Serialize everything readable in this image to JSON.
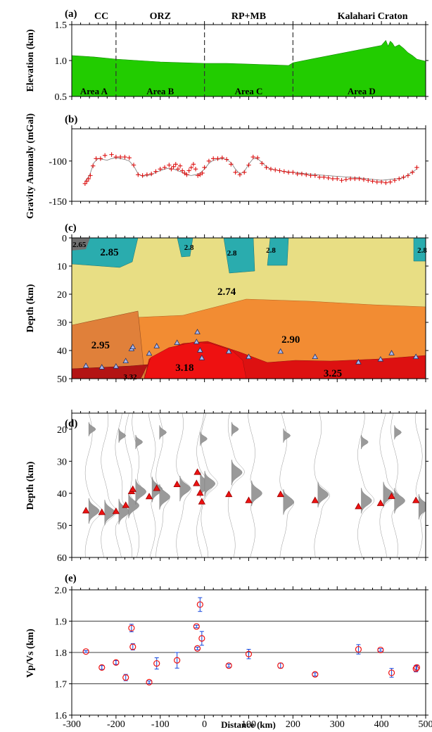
{
  "panel_labels": [
    "(a)",
    "(b)",
    "(c)",
    "(d)",
    "(e)"
  ],
  "chart_data": [
    {
      "id": "a",
      "type": "area",
      "ylabel": "Elevation (km)",
      "xlim": [
        -300,
        500
      ],
      "ylim": [
        0.5,
        1.5
      ],
      "yticks": [
        0.5,
        1.0,
        1.5
      ],
      "fill_color": "#22cc00",
      "top_labels": [
        {
          "text": "CC",
          "x": -233
        },
        {
          "text": "ORZ",
          "x": -100
        },
        {
          "text": "RP+MB",
          "x": 100
        },
        {
          "text": "Kalahari Craton",
          "x": 380
        }
      ],
      "area_labels": [
        {
          "text": "Area A",
          "x": -250
        },
        {
          "text": "Area B",
          "x": -100
        },
        {
          "text": "Area C",
          "x": 100
        },
        {
          "text": "Area D",
          "x": 355
        }
      ],
      "boundaries": [
        -200,
        0,
        200
      ],
      "x": [
        -300,
        -250,
        -200,
        -150,
        -100,
        -50,
        0,
        50,
        100,
        150,
        190,
        200,
        250,
        300,
        350,
        400,
        410,
        415,
        420,
        425,
        430,
        440,
        450,
        460,
        470,
        480,
        500
      ],
      "y": [
        1.07,
        1.05,
        1.02,
        1.0,
        0.98,
        0.97,
        0.96,
        0.96,
        0.95,
        0.94,
        0.93,
        0.97,
        1.03,
        1.09,
        1.15,
        1.21,
        1.28,
        1.2,
        1.27,
        1.24,
        1.19,
        1.22,
        1.17,
        1.11,
        1.07,
        1.02,
        0.99
      ]
    },
    {
      "id": "b",
      "type": "scatter",
      "ylabel": "Gravity Anomaly (mGal)",
      "xlim": [
        -300,
        500
      ],
      "ylim": [
        -150,
        -60
      ],
      "yticks": [
        -150,
        -100
      ],
      "observed": {
        "marker": "+",
        "color": "#dd1111",
        "x": [
          -270,
          -266,
          -262,
          -258,
          -252,
          -245,
          -235,
          -225,
          -210,
          -200,
          -190,
          -180,
          -170,
          -160,
          -150,
          -140,
          -130,
          -120,
          -110,
          -100,
          -90,
          -80,
          -75,
          -70,
          -65,
          -60,
          -55,
          -50,
          -45,
          -40,
          -35,
          -30,
          -25,
          -20,
          -15,
          -10,
          -5,
          0,
          10,
          20,
          30,
          40,
          50,
          60,
          70,
          80,
          90,
          100,
          110,
          120,
          130,
          140,
          150,
          160,
          170,
          180,
          190,
          200,
          210,
          220,
          230,
          240,
          250,
          260,
          270,
          280,
          290,
          300,
          310,
          320,
          330,
          340,
          350,
          360,
          370,
          380,
          390,
          400,
          410,
          420,
          430,
          440,
          450,
          460,
          470,
          480
        ],
        "y": [
          -128,
          -125,
          -122,
          -118,
          -106,
          -97,
          -97,
          -93,
          -92,
          -95,
          -95,
          -95,
          -96,
          -105,
          -117,
          -118,
          -117,
          -116,
          -113,
          -110,
          -108,
          -105,
          -110,
          -107,
          -104,
          -110,
          -106,
          -112,
          -115,
          -117,
          -112,
          -108,
          -104,
          -110,
          -118,
          -117,
          -115,
          -108,
          -100,
          -97,
          -97,
          -96,
          -98,
          -104,
          -114,
          -117,
          -114,
          -105,
          -95,
          -96,
          -103,
          -108,
          -110,
          -111,
          -112,
          -113,
          -114,
          -114,
          -116,
          -116,
          -117,
          -118,
          -118,
          -120,
          -120,
          -121,
          -122,
          -122,
          -124,
          -123,
          -122,
          -122,
          -122,
          -123,
          -124,
          -125,
          -126,
          -126,
          -127,
          -126,
          -124,
          -122,
          -120,
          -118,
          -114,
          -108
        ]
      },
      "model": {
        "color": "#777777",
        "x": [
          -270,
          -260,
          -250,
          -240,
          -230,
          -220,
          -210,
          -200,
          -190,
          -180,
          -170,
          -160,
          -150,
          -140,
          -130,
          -120,
          -110,
          -100,
          -90,
          -80,
          -70,
          -60,
          -50,
          -40,
          -30,
          -20,
          -10,
          0,
          10,
          20,
          30,
          40,
          50,
          60,
          70,
          80,
          90,
          100,
          110,
          120,
          130,
          140,
          150,
          160,
          170,
          180,
          200,
          250,
          300,
          350,
          400,
          450,
          480
        ],
        "y": [
          -125,
          -118,
          -102,
          -97,
          -98,
          -99,
          -97,
          -96,
          -97,
          -98,
          -100,
          -106,
          -116,
          -119,
          -118,
          -117,
          -114,
          -112,
          -110,
          -109,
          -110,
          -112,
          -114,
          -117,
          -118,
          -117,
          -115,
          -110,
          -103,
          -99,
          -98,
          -97,
          -98,
          -102,
          -110,
          -116,
          -113,
          -104,
          -97,
          -97,
          -102,
          -107,
          -110,
          -111,
          -112,
          -113,
          -114,
          -117,
          -119,
          -121,
          -124,
          -121,
          -110
        ]
      }
    },
    {
      "id": "c",
      "type": "density_model",
      "ylabel": "Depth (km)",
      "xlim": [
        -300,
        500
      ],
      "ylim": [
        50,
        0
      ],
      "yticks": [
        0,
        10,
        20,
        30,
        40,
        50
      ],
      "density_labels": [
        {
          "text": "2.65",
          "x": -283,
          "y": 2
        },
        {
          "text": "2.85",
          "x": -215,
          "y": 5
        },
        {
          "text": "2.8",
          "x": -35,
          "y": 3
        },
        {
          "text": "2.8",
          "x": 62,
          "y": 5
        },
        {
          "text": "2.8",
          "x": 150,
          "y": 4
        },
        {
          "text": "2.8",
          "x": 492,
          "y": 4
        },
        {
          "text": "2.74",
          "x": 50,
          "y": 19
        },
        {
          "text": "2.95",
          "x": -235,
          "y": 38
        },
        {
          "text": "2.90",
          "x": 195,
          "y": 36
        },
        {
          "text": "3.18",
          "x": -45,
          "y": 46
        },
        {
          "text": "3.32",
          "x": -168,
          "y": 49
        },
        {
          "text": "3.25",
          "x": 290,
          "y": 48
        }
      ],
      "layer_colors": {
        "2.65": "#707070",
        "2.8": "#2aacae",
        "2.74": "#e8de84",
        "2.90": "#f28c33",
        "2.95": "#e0803a",
        "3.18": "#ee1111",
        "3.32": "#b31414",
        "3.25": "#dd1111"
      },
      "moho_points": {
        "marker": "triangle",
        "color": "#aab8ee",
        "x": [
          -268,
          -232,
          -200,
          -178,
          -165,
          -162,
          -125,
          -108,
          -62,
          -18,
          -16,
          -10,
          -6,
          55,
          100,
          172,
          250,
          348,
          398,
          423,
          478
        ],
        "y": [
          45.5,
          46.0,
          45.7,
          43.8,
          39.5,
          38.8,
          41.1,
          38.5,
          37.3,
          37.0,
          33.5,
          40.0,
          42.7,
          40.4,
          42.3,
          40.4,
          42.3,
          44.2,
          43.2,
          41.0,
          42.3
        ]
      }
    },
    {
      "id": "d",
      "type": "receiver_function_image",
      "ylabel": "Depth (km)",
      "xlim": [
        -300,
        500
      ],
      "ylim": [
        60,
        15
      ],
      "yticks": [
        20,
        30,
        40,
        50,
        60
      ],
      "picks": {
        "marker": "triangle",
        "color": "#ee1111",
        "x": [
          -268,
          -232,
          -200,
          -178,
          -165,
          -162,
          -125,
          -108,
          -62,
          -18,
          -16,
          -10,
          -6,
          55,
          100,
          172,
          250,
          348,
          398,
          423,
          478
        ],
        "y": [
          45.5,
          46.0,
          45.7,
          43.8,
          39.5,
          38.8,
          41.1,
          38.5,
          37.3,
          37.0,
          33.5,
          40.0,
          42.7,
          40.4,
          42.3,
          40.4,
          42.3,
          44.2,
          43.2,
          41.0,
          42.3
        ]
      }
    },
    {
      "id": "e",
      "type": "scatter",
      "ylabel": "Vp/Vs (km)",
      "xlabel": "Distance (km)",
      "xlim": [
        -300,
        500
      ],
      "ylim": [
        1.6,
        2.0
      ],
      "yticks": [
        1.6,
        1.7,
        1.8,
        1.9,
        2.0
      ],
      "xticks": [
        -300,
        -200,
        -100,
        0,
        100,
        200,
        300,
        400,
        500
      ],
      "hlines": [
        1.7,
        1.8,
        1.9
      ],
      "marker_color": "#ee1111",
      "errorbar_color": "#1144dd",
      "x": [
        -268,
        -232,
        -200,
        -178,
        -165,
        -162,
        -125,
        -108,
        -62,
        -18,
        -16,
        -10,
        -6,
        55,
        100,
        172,
        250,
        348,
        398,
        423,
        478,
        480
      ],
      "y": [
        1.803,
        1.752,
        1.768,
        1.72,
        1.878,
        1.818,
        1.705,
        1.765,
        1.775,
        1.883,
        1.813,
        1.953,
        1.845,
        1.758,
        1.795,
        1.758,
        1.73,
        1.81,
        1.808,
        1.735,
        1.748,
        1.752
      ],
      "err": [
        0.003,
        0.006,
        0.006,
        0.01,
        0.012,
        0.01,
        0.004,
        0.018,
        0.025,
        0.004,
        0.004,
        0.022,
        0.022,
        0.005,
        0.015,
        0.008,
        0.005,
        0.015,
        0.004,
        0.014,
        0.01,
        0.008
      ]
    }
  ]
}
